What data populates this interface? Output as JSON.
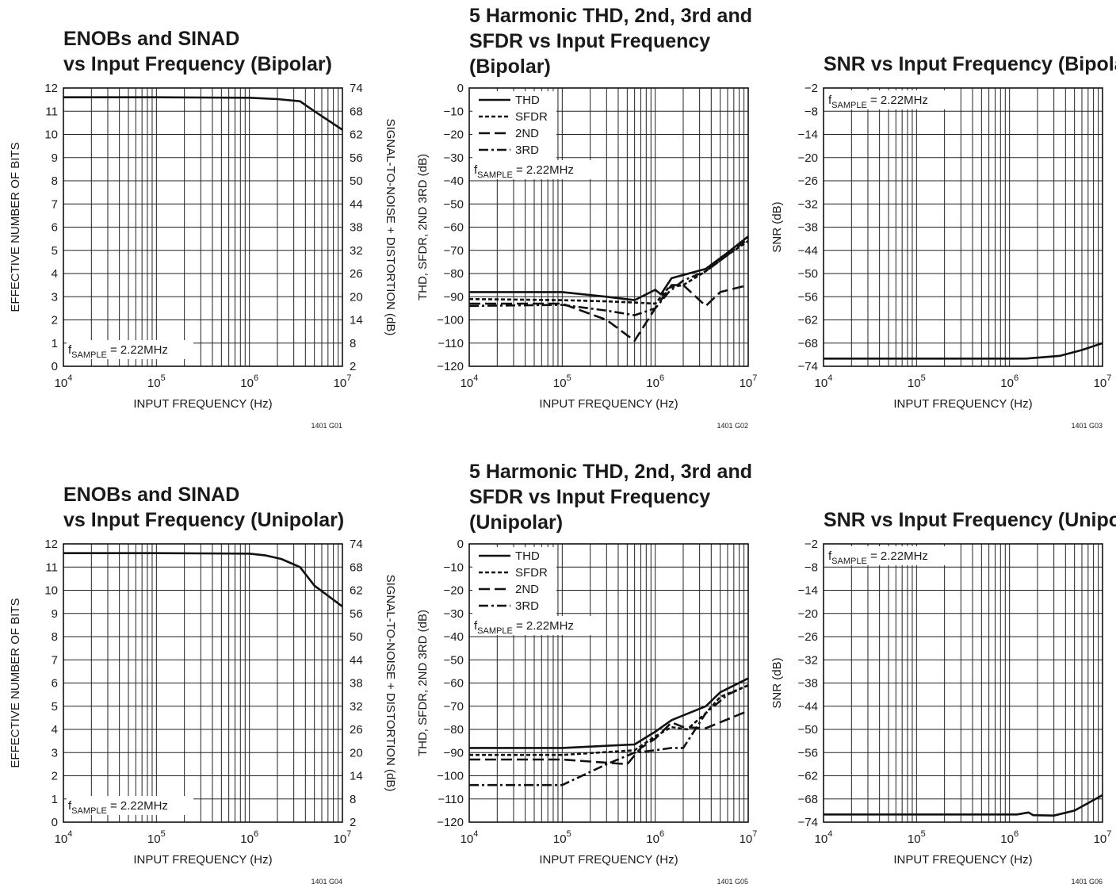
{
  "chart_data": [
    {
      "id": "G01",
      "type": "line",
      "title_lines": [
        "ENOBs and SINAD",
        "vs Input Frequency (Bipolar)"
      ],
      "xlabel": "INPUT FREQUENCY (Hz)",
      "ylabel": "EFFECTIVE NUMBER OF BITS",
      "y2label": "SIGNAL-TO-NOISE + DISTORTION (dB)",
      "xscale": "log",
      "xlim": [
        10000,
        10000000
      ],
      "ylim": [
        0,
        12
      ],
      "yticks": [
        0,
        1,
        2,
        3,
        4,
        5,
        6,
        7,
        8,
        9,
        10,
        11,
        12
      ],
      "y2ticks": [
        2,
        8,
        14,
        20,
        26,
        32,
        38,
        44,
        50,
        56,
        62,
        68,
        74
      ],
      "annotation": "2.22MHz",
      "annotation_position": "bottom-left",
      "code": "1401 G01",
      "series": [
        {
          "style": "solid",
          "x": [
            10000,
            100000,
            1000000,
            2000000,
            3500000,
            5000000,
            10000000
          ],
          "y": [
            11.6,
            11.6,
            11.58,
            11.52,
            11.43,
            11.0,
            10.2
          ]
        }
      ]
    },
    {
      "id": "G02",
      "type": "line",
      "title_lines": [
        "5 Harmonic THD, 2nd, 3rd and",
        "SFDR vs Input Frequency",
        "(Bipolar)"
      ],
      "xlabel": "INPUT FREQUENCY (Hz)",
      "ylabel": "THD, SFDR, 2ND 3RD (dB)",
      "xscale": "log",
      "xlim": [
        10000,
        10000000
      ],
      "ylim": [
        -120,
        0
      ],
      "yticks": [
        0,
        -10,
        -20,
        -30,
        -40,
        -50,
        -60,
        -70,
        -80,
        -90,
        -100,
        -110,
        -120
      ],
      "annotation": "2.22MHz",
      "annotation_position": "top-left",
      "code": "1401 G02",
      "legend": [
        "THD",
        "SFDR",
        "2ND",
        "3RD"
      ],
      "series": [
        {
          "name": "THD",
          "style": "solid",
          "x": [
            10000,
            100000,
            300000,
            600000,
            1000000,
            1150000,
            1500000,
            3500000,
            6000000,
            10000000
          ],
          "y": [
            -88,
            -88,
            -90,
            -91.5,
            -87,
            -89,
            -82,
            -78,
            -71,
            -64
          ]
        },
        {
          "name": "SFDR",
          "style": "dotted",
          "x": [
            10000,
            100000,
            300000,
            600000,
            1000000,
            1400000,
            2000000,
            3500000,
            6000000,
            10000000
          ],
          "y": [
            -91,
            -91.5,
            -92,
            -92.5,
            -93,
            -86,
            -85,
            -79,
            -72,
            -66
          ]
        },
        {
          "name": "2ND",
          "style": "dash",
          "x": [
            10000,
            100000,
            300000,
            600000,
            1000000,
            1500000,
            2000000,
            3500000,
            5000000,
            10000000
          ],
          "y": [
            -93,
            -93,
            -100,
            -109,
            -95,
            -85,
            -85,
            -94,
            -88,
            -85
          ]
        },
        {
          "name": "3RD",
          "style": "dashdot",
          "x": [
            10000,
            100000,
            300000,
            600000,
            1000000,
            1400000,
            2000000,
            3500000,
            6000000,
            10000000
          ],
          "y": [
            -94,
            -93.5,
            -96,
            -98,
            -95,
            -88,
            -83,
            -79,
            -72,
            -65
          ]
        }
      ]
    },
    {
      "id": "G03",
      "type": "line",
      "title_lines": [
        "SNR vs Input Frequency (Bipolar)"
      ],
      "xlabel": "INPUT FREQUENCY (Hz)",
      "ylabel": "SNR (dB)",
      "xscale": "log",
      "xlim": [
        10000,
        10000000
      ],
      "ylim": [
        -74,
        -2
      ],
      "yticks": [
        -2,
        -8,
        -14,
        -20,
        -26,
        -32,
        -38,
        -44,
        -50,
        -56,
        -62,
        -68,
        -74
      ],
      "annotation": "2.22MHz",
      "annotation_position": "top-left",
      "code": "1401 G03",
      "series": [
        {
          "style": "solid",
          "x": [
            10000,
            100000,
            1000000,
            1500000,
            3500000,
            6000000,
            10000000
          ],
          "y": [
            -72,
            -72,
            -72,
            -72,
            -71.3,
            -69.8,
            -68
          ]
        }
      ]
    },
    {
      "id": "G04",
      "type": "line",
      "title_lines": [
        "ENOBs and SINAD",
        "vs Input Frequency (Unipolar)"
      ],
      "xlabel": "INPUT FREQUENCY (Hz)",
      "ylabel": "EFFECTIVE NUMBER OF BITS",
      "y2label": "SIGNAL-TO-NOISE + DISTORTION (dB)",
      "xscale": "log",
      "xlim": [
        10000,
        10000000
      ],
      "ylim": [
        0,
        12
      ],
      "yticks": [
        0,
        1,
        2,
        3,
        4,
        5,
        6,
        7,
        8,
        9,
        10,
        11,
        12
      ],
      "y2ticks": [
        2,
        8,
        14,
        20,
        26,
        32,
        38,
        44,
        50,
        56,
        62,
        68,
        74
      ],
      "annotation": "2.22MHz",
      "annotation_position": "bottom-left",
      "code": "1401 G04",
      "series": [
        {
          "style": "solid",
          "x": [
            10000,
            100000,
            1000000,
            1500000,
            2200000,
            3500000,
            5000000,
            10000000
          ],
          "y": [
            11.6,
            11.6,
            11.58,
            11.5,
            11.35,
            11.0,
            10.2,
            9.3
          ]
        }
      ]
    },
    {
      "id": "G05",
      "type": "line",
      "title_lines": [
        "5 Harmonic THD, 2nd, 3rd and",
        "SFDR vs Input Frequency",
        "(Unipolar)"
      ],
      "xlabel": "INPUT FREQUENCY (Hz)",
      "ylabel": "THD, SFDR, 2ND 3RD (dB)",
      "xscale": "log",
      "xlim": [
        10000,
        10000000
      ],
      "ylim": [
        -120,
        0
      ],
      "yticks": [
        0,
        -10,
        -20,
        -30,
        -40,
        -50,
        -60,
        -70,
        -80,
        -90,
        -100,
        -110,
        -120
      ],
      "annotation": "2.22MHz",
      "annotation_position": "top-left",
      "code": "1401 G05",
      "legend": [
        "THD",
        "SFDR",
        "2ND",
        "3RD"
      ],
      "series": [
        {
          "name": "THD",
          "style": "solid",
          "x": [
            10000,
            100000,
            600000,
            1000000,
            1500000,
            3500000,
            5000000,
            10000000
          ],
          "y": [
            -88,
            -88,
            -86.5,
            -81,
            -76,
            -70,
            -64,
            -58
          ]
        },
        {
          "name": "SFDR",
          "style": "dotted",
          "x": [
            10000,
            100000,
            600000,
            1000000,
            1500000,
            2200000,
            3500000,
            5000000,
            10000000
          ],
          "y": [
            -91,
            -91,
            -89,
            -83,
            -79,
            -80,
            -73,
            -66,
            -61
          ]
        },
        {
          "name": "2ND",
          "style": "dash",
          "x": [
            10000,
            100000,
            500000,
            700000,
            1000000,
            1500000,
            2000000,
            3500000,
            10000000
          ],
          "y": [
            -93,
            -93,
            -95,
            -88,
            -84,
            -77,
            -79,
            -79.5,
            -72
          ]
        },
        {
          "name": "3RD",
          "style": "dashdot",
          "x": [
            10000,
            100000,
            300000,
            600000,
            1000000,
            1500000,
            2000000,
            3500000,
            6000000,
            10000000
          ],
          "y": [
            -104,
            -104,
            -95,
            -90,
            -89,
            -88,
            -88,
            -73,
            -65,
            -61
          ]
        }
      ]
    },
    {
      "id": "G06",
      "type": "line",
      "title_lines": [
        "SNR vs Input Frequency (Unipolar)"
      ],
      "xlabel": "INPUT FREQUENCY (Hz)",
      "ylabel": "SNR (dB)",
      "xscale": "log",
      "xlim": [
        10000,
        10000000
      ],
      "ylim": [
        -74,
        -2
      ],
      "yticks": [
        -2,
        -8,
        -14,
        -20,
        -26,
        -32,
        -38,
        -44,
        -50,
        -56,
        -62,
        -68,
        -74
      ],
      "annotation": "2.22MHz",
      "annotation_position": "top-left",
      "code": "1401 G06",
      "series": [
        {
          "style": "solid",
          "x": [
            10000,
            100000,
            1000000,
            1200000,
            1600000,
            1800000,
            3000000,
            5000000,
            10000000
          ],
          "y": [
            -72,
            -72,
            -72,
            -72,
            -71.5,
            -72.2,
            -72.3,
            -71,
            -67
          ]
        }
      ]
    }
  ]
}
